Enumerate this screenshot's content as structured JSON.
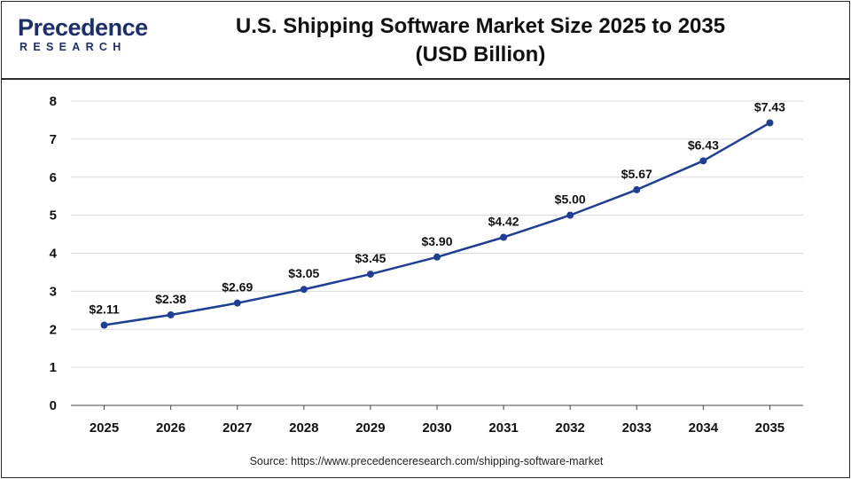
{
  "header": {
    "logo_main": "Precedence",
    "logo_sub": "RESEARCH",
    "title_line1": "U.S. Shipping Software Market Size 2025 to 2035",
    "title_line2": "(USD Billion)"
  },
  "source": "Source: https://www.precedenceresearch.com/shipping-software-market",
  "colors": {
    "line": "#1f3f94",
    "grid": "#d9d9d9",
    "axis": "#444444"
  },
  "chart_data": {
    "type": "line",
    "title": "U.S. Shipping Software Market Size 2025 to 2035 (USD Billion)",
    "xlabel": "",
    "ylabel": "",
    "categories": [
      "2025",
      "2026",
      "2027",
      "2028",
      "2029",
      "2030",
      "2031",
      "2032",
      "2033",
      "2034",
      "2035"
    ],
    "values": [
      2.11,
      2.38,
      2.69,
      3.05,
      3.45,
      3.9,
      4.42,
      5.0,
      5.67,
      6.43,
      7.43
    ],
    "data_labels": [
      "$2.11",
      "$2.38",
      "$2.69",
      "$3.05",
      "$3.45",
      "$3.90",
      "$4.42",
      "$5.00",
      "$5.67",
      "$6.43",
      "$7.43"
    ],
    "ylim": [
      0,
      8
    ],
    "yticks": [
      "0",
      "1",
      "2",
      "3",
      "4",
      "5",
      "6",
      "7",
      "8"
    ],
    "grid": true,
    "legend": "none"
  }
}
